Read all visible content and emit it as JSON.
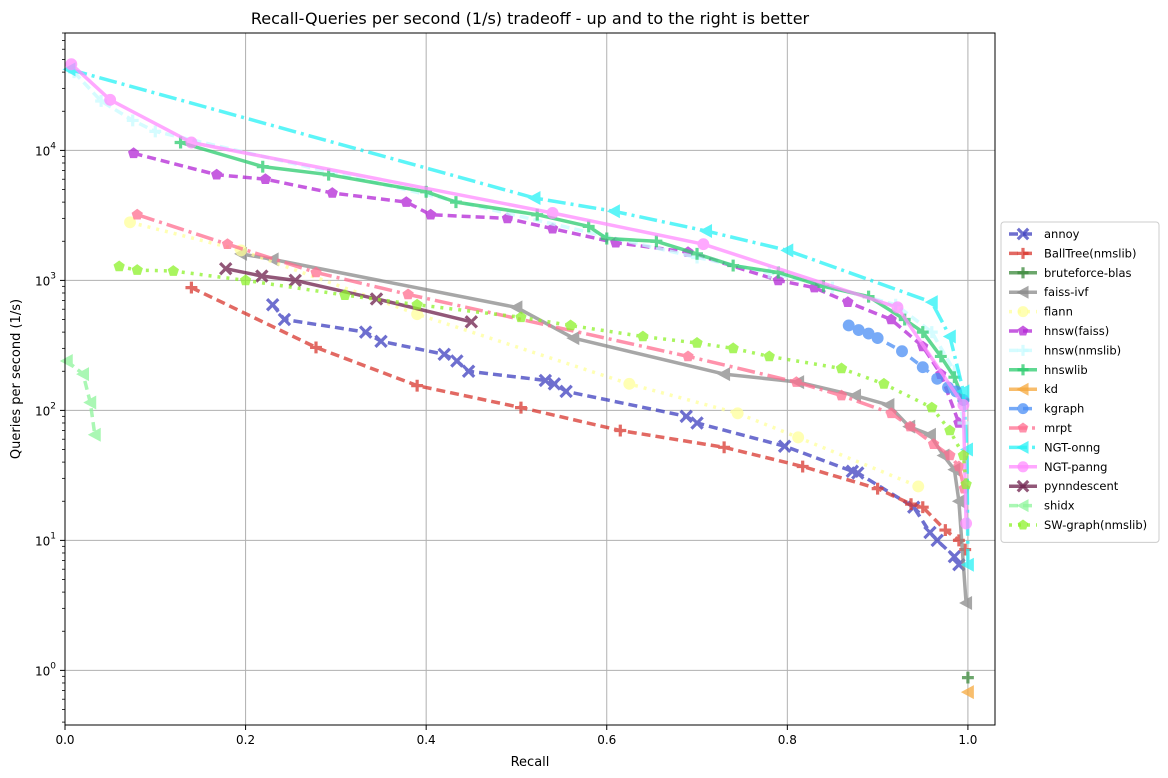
{
  "chart_data": {
    "type": "line",
    "title": "Recall-Queries per second (1/s) tradeoff - up and to the right is better",
    "xlabel": "Recall",
    "ylabel": "Queries per second (1/s)",
    "xlim": [
      0.0,
      1.03
    ],
    "ylim": [
      0.38,
      80000
    ],
    "yscale": "log",
    "grid": true,
    "legend_position": "right",
    "x_ticks": [
      0.0,
      0.2,
      0.4,
      0.6,
      0.8,
      1.0
    ],
    "x_tick_labels": [
      "0.0",
      "0.2",
      "0.4",
      "0.6",
      "0.8",
      "1.0"
    ],
    "y_ticks": [
      1,
      10,
      100,
      1000,
      10000
    ],
    "y_tick_labels": [
      "10^0",
      "10^1",
      "10^2",
      "10^3",
      "10^4"
    ],
    "series": [
      {
        "name": "annoy",
        "color": "#3e3fbf",
        "dash": "9,5",
        "marker": "x",
        "x": [
          0.23,
          0.243,
          0.333,
          0.35,
          0.42,
          0.434,
          0.447,
          0.532,
          0.542,
          0.555,
          0.688,
          0.7,
          0.797,
          0.872,
          0.878,
          0.94,
          0.958,
          0.966,
          0.985,
          0.99
        ],
        "y": [
          650,
          500,
          400,
          340,
          270,
          240,
          200,
          170,
          160,
          140,
          90,
          80,
          53,
          34,
          33,
          18,
          11.5,
          10,
          7.5,
          6.5
        ]
      },
      {
        "name": "BallTree(nmslib)",
        "color": "#d9382f",
        "dash": "9,5",
        "marker": "plus",
        "x": [
          0.14,
          0.278,
          0.39,
          0.505,
          0.615,
          0.73,
          0.817,
          0.9,
          0.937,
          0.95,
          0.975,
          0.99,
          0.997
        ],
        "y": [
          880,
          305,
          155,
          105,
          70,
          52,
          37,
          25,
          19,
          18,
          12,
          10,
          8.5
        ]
      },
      {
        "name": "bruteforce-blas",
        "color": "#3c8a3c",
        "dash": "",
        "marker": "plus",
        "x": [
          1.0
        ],
        "y": [
          0.88
        ]
      },
      {
        "name": "faiss-ivf",
        "color": "#8a8a8a",
        "dash": "",
        "marker": "triangle-left",
        "x": [
          0.195,
          0.23,
          0.5,
          0.563,
          0.73,
          0.812,
          0.875,
          0.912,
          0.935,
          0.958,
          0.973,
          0.985,
          0.99,
          0.998
        ],
        "y": [
          1600,
          1450,
          620,
          360,
          190,
          165,
          130,
          110,
          75,
          65,
          45,
          35,
          20,
          3.3
        ]
      },
      {
        "name": "flann",
        "color": "#ffff9a",
        "dash": "3,6",
        "marker": "circle",
        "x": [
          0.072,
          0.195,
          0.39,
          0.625,
          0.745,
          0.812,
          0.945
        ],
        "y": [
          2800,
          1700,
          550,
          160,
          95,
          62,
          26
        ]
      },
      {
        "name": "hnsw(faiss)",
        "color": "#b326d6",
        "dash": "9,5",
        "marker": "pentagon",
        "x": [
          0.076,
          0.168,
          0.222,
          0.296,
          0.378,
          0.405,
          0.49,
          0.54,
          0.61,
          0.69,
          0.79,
          0.83,
          0.867,
          0.915,
          0.95,
          0.97,
          0.99
        ],
        "y": [
          9500,
          6500,
          6000,
          4700,
          4000,
          3200,
          3000,
          2500,
          1950,
          1650,
          1000,
          880,
          680,
          500,
          310,
          190,
          80
        ]
      },
      {
        "name": "hnsw(nmslib)",
        "color": "#c8fbff",
        "dash": "9,5",
        "marker": "plus",
        "x": [
          0.01,
          0.04,
          0.075,
          0.1,
          0.7,
          0.78,
          0.85,
          0.92,
          0.96,
          0.985,
          0.995
        ],
        "y": [
          40000,
          24000,
          17000,
          14000,
          1500,
          1150,
          880,
          650,
          400,
          200,
          80
        ]
      },
      {
        "name": "hnswlib",
        "color": "#2bcc6e",
        "dash": "",
        "marker": "plus",
        "x": [
          0.128,
          0.219,
          0.292,
          0.4,
          0.433,
          0.523,
          0.58,
          0.6,
          0.655,
          0.7,
          0.74,
          0.79,
          0.84,
          0.89,
          0.93,
          0.95,
          0.97,
          0.985,
          0.995
        ],
        "y": [
          11500,
          7500,
          6500,
          4800,
          4000,
          3200,
          2600,
          2100,
          2000,
          1600,
          1300,
          1150,
          900,
          750,
          500,
          400,
          260,
          180,
          120
        ]
      },
      {
        "name": "kd",
        "color": "#f6a83c",
        "dash": "",
        "marker": "triangle-left",
        "x": [
          1.0
        ],
        "y": [
          0.68
        ]
      },
      {
        "name": "kgraph",
        "color": "#4a8ef5",
        "dash": "9,5",
        "marker": "circle",
        "x": [
          0.868,
          0.879,
          0.89,
          0.9,
          0.927,
          0.95,
          0.966,
          0.978,
          0.987,
          0.995
        ],
        "y": [
          450,
          415,
          390,
          360,
          285,
          215,
          175,
          150,
          140,
          120
        ]
      },
      {
        "name": "mrpt",
        "color": "#ff6e90",
        "dash": "18,5,3,5",
        "marker": "pentagon",
        "x": [
          0.08,
          0.18,
          0.278,
          0.38,
          0.69,
          0.81,
          0.86,
          0.915,
          0.936,
          0.962,
          0.98,
          0.99,
          0.996
        ],
        "y": [
          3200,
          1900,
          1150,
          780,
          260,
          165,
          130,
          95,
          75,
          55,
          45,
          37,
          25
        ]
      },
      {
        "name": "NGT-onng",
        "color": "#26f2f6",
        "dash": "18,5,3,5",
        "marker": "triangle-left",
        "x": [
          0.005,
          0.52,
          0.608,
          0.71,
          0.8,
          0.96,
          0.98,
          0.995,
          0.999,
          1.0
        ],
        "y": [
          42000,
          4300,
          3400,
          2400,
          1700,
          680,
          370,
          140,
          50,
          6.5
        ]
      },
      {
        "name": "NGT-panng",
        "color": "#ff8cff",
        "dash": "",
        "marker": "circle",
        "x": [
          0.007,
          0.05,
          0.14,
          0.54,
          0.707,
          0.922,
          0.995,
          0.998
        ],
        "y": [
          46000,
          24500,
          11500,
          3300,
          1900,
          620,
          110,
          13.5
        ]
      },
      {
        "name": "pynndescent",
        "color": "#6e1f4c",
        "dash": "",
        "marker": "x",
        "x": [
          0.178,
          0.218,
          0.255,
          0.345,
          0.45
        ],
        "y": [
          1230,
          1080,
          1000,
          720,
          480
        ]
      },
      {
        "name": "shidx",
        "color": "#8ef59b",
        "dash": "9,5",
        "marker": "triangle-left",
        "x": [
          0.002,
          0.02,
          0.028,
          0.033
        ],
        "y": [
          240,
          190,
          115,
          65
        ]
      },
      {
        "name": "SW-graph(nmslib)",
        "color": "#8df22a",
        "dash": "3,6",
        "marker": "pentagon",
        "x": [
          0.06,
          0.08,
          0.12,
          0.2,
          0.31,
          0.39,
          0.505,
          0.56,
          0.64,
          0.7,
          0.74,
          0.78,
          0.86,
          0.907,
          0.96,
          0.98,
          0.995,
          0.998
        ],
        "y": [
          1280,
          1200,
          1180,
          1000,
          770,
          650,
          520,
          450,
          370,
          330,
          300,
          260,
          210,
          160,
          105,
          70,
          45,
          27
        ]
      }
    ]
  }
}
